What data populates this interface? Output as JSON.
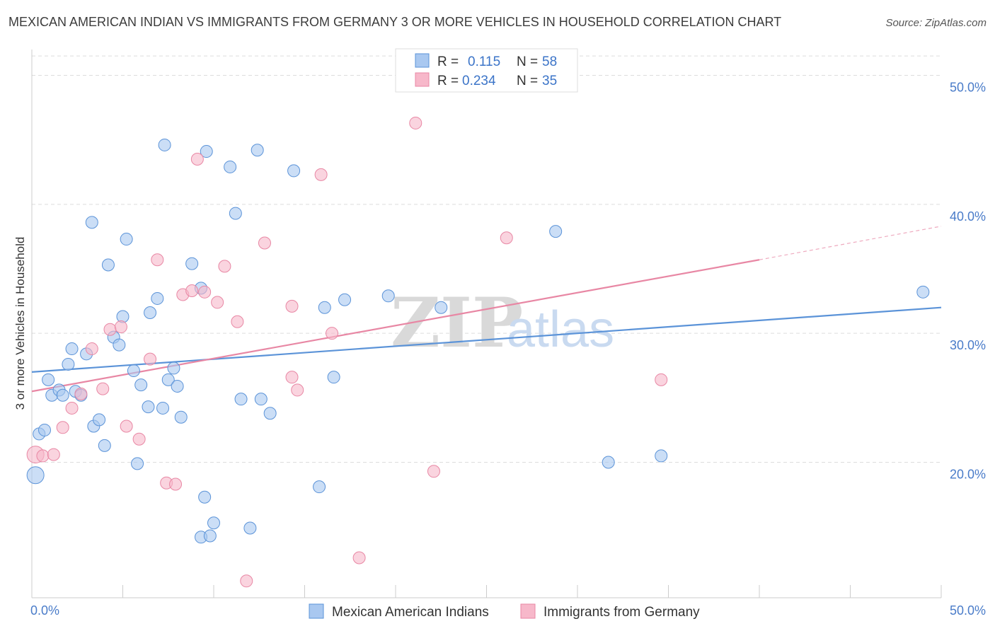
{
  "header": {
    "title": "MEXICAN AMERICAN INDIAN VS IMMIGRANTS FROM GERMANY 3 OR MORE VEHICLES IN HOUSEHOLD CORRELATION CHART",
    "source": "Source: ZipAtlas.com"
  },
  "watermark": {
    "zip": "ZIP",
    "atlas": "atlas"
  },
  "stats_legend": {
    "r_label": "R =",
    "n_label": "N =",
    "rows": [
      {
        "r": "0.115",
        "n": "58",
        "color": "#a9c8f0"
      },
      {
        "r": "0.234",
        "n": "35",
        "color": "#f7b8ca"
      }
    ]
  },
  "chart_data": {
    "type": "scatter",
    "title": "MEXICAN AMERICAN INDIAN VS IMMIGRANTS FROM GERMANY 3 OR MORE VEHICLES IN HOUSEHOLD CORRELATION CHART",
    "xlabel": "",
    "ylabel": "3 or more Vehicles in Household",
    "xlim": [
      0,
      50
    ],
    "ylim": [
      9.5,
      52
    ],
    "x_tick_labels": [
      "0.0%",
      "50.0%"
    ],
    "y_ticks": [
      {
        "value": 20,
        "label": "20.0%"
      },
      {
        "value": 30,
        "label": "30.0%"
      },
      {
        "value": 40,
        "label": "40.0%"
      },
      {
        "value": 50,
        "label": "50.0%"
      }
    ],
    "grid": "horizontal dashed",
    "legend_position": "bottom",
    "series": [
      {
        "name": "Mexican American Indians",
        "color": "#5b93d8",
        "fill": "#a9c8f0",
        "trend": {
          "x": [
            0,
            50
          ],
          "y": [
            27.0,
            32.0
          ]
        },
        "points": [
          [
            0.2,
            19.0
          ],
          [
            0.4,
            22.2
          ],
          [
            0.7,
            22.5
          ],
          [
            0.9,
            26.4
          ],
          [
            1.1,
            25.2
          ],
          [
            1.5,
            25.6
          ],
          [
            1.7,
            25.2
          ],
          [
            2.0,
            27.6
          ],
          [
            2.2,
            28.8
          ],
          [
            2.4,
            25.5
          ],
          [
            2.7,
            25.2
          ],
          [
            3.0,
            28.4
          ],
          [
            3.3,
            38.6
          ],
          [
            3.4,
            22.8
          ],
          [
            3.7,
            23.3
          ],
          [
            4.0,
            21.3
          ],
          [
            4.2,
            35.3
          ],
          [
            4.5,
            29.7
          ],
          [
            4.8,
            29.1
          ],
          [
            5.0,
            31.3
          ],
          [
            5.2,
            37.3
          ],
          [
            5.6,
            27.1
          ],
          [
            5.8,
            19.9
          ],
          [
            6.0,
            26.0
          ],
          [
            6.4,
            24.3
          ],
          [
            6.5,
            31.6
          ],
          [
            6.9,
            32.7
          ],
          [
            7.2,
            24.2
          ],
          [
            7.3,
            44.6
          ],
          [
            7.5,
            26.4
          ],
          [
            7.8,
            27.3
          ],
          [
            8.0,
            25.9
          ],
          [
            8.2,
            23.5
          ],
          [
            8.8,
            35.4
          ],
          [
            9.3,
            33.5
          ],
          [
            9.5,
            17.3
          ],
          [
            9.3,
            14.2
          ],
          [
            9.6,
            44.1
          ],
          [
            9.8,
            14.3
          ],
          [
            10.0,
            15.3
          ],
          [
            10.9,
            42.9
          ],
          [
            11.2,
            39.3
          ],
          [
            11.5,
            24.9
          ],
          [
            12.0,
            14.9
          ],
          [
            12.4,
            44.2
          ],
          [
            12.6,
            24.9
          ],
          [
            13.1,
            23.8
          ],
          [
            14.4,
            42.6
          ],
          [
            15.8,
            18.1
          ],
          [
            16.1,
            32.0
          ],
          [
            16.6,
            26.6
          ],
          [
            17.2,
            32.6
          ],
          [
            19.6,
            32.9
          ],
          [
            22.5,
            32.0
          ],
          [
            28.8,
            37.9
          ],
          [
            31.7,
            20.0
          ],
          [
            34.6,
            20.5
          ],
          [
            49.0,
            33.2
          ]
        ]
      },
      {
        "name": "Immigrants from Germany",
        "color": "#e887a4",
        "fill": "#f7b8ca",
        "trend": {
          "x": [
            0,
            40
          ],
          "y": [
            25.5,
            35.7
          ]
        },
        "trend_dashed": {
          "x": [
            40,
            50
          ],
          "y": [
            35.7,
            38.3
          ]
        },
        "points": [
          [
            0.2,
            20.6
          ],
          [
            0.6,
            20.5
          ],
          [
            1.2,
            20.6
          ],
          [
            1.7,
            22.7
          ],
          [
            2.2,
            24.2
          ],
          [
            2.7,
            25.3
          ],
          [
            3.3,
            28.8
          ],
          [
            3.9,
            25.7
          ],
          [
            4.3,
            30.3
          ],
          [
            4.9,
            30.5
          ],
          [
            5.2,
            22.8
          ],
          [
            5.9,
            21.8
          ],
          [
            6.5,
            28.0
          ],
          [
            6.9,
            35.7
          ],
          [
            7.4,
            18.4
          ],
          [
            7.9,
            18.3
          ],
          [
            8.3,
            33.0
          ],
          [
            8.8,
            33.3
          ],
          [
            9.1,
            43.5
          ],
          [
            9.5,
            33.2
          ],
          [
            10.2,
            32.4
          ],
          [
            10.6,
            35.2
          ],
          [
            11.3,
            30.9
          ],
          [
            11.8,
            10.8
          ],
          [
            12.8,
            37.0
          ],
          [
            14.3,
            26.6
          ],
          [
            14.3,
            32.1
          ],
          [
            14.6,
            25.6
          ],
          [
            15.9,
            42.3
          ],
          [
            16.5,
            30.0
          ],
          [
            18.0,
            12.6
          ],
          [
            21.1,
            46.3
          ],
          [
            22.1,
            19.3
          ],
          [
            26.1,
            37.4
          ],
          [
            34.6,
            26.4
          ]
        ]
      }
    ]
  },
  "bottom_legend": {
    "items": [
      {
        "label": "Mexican American Indians",
        "color": "#a9c8f0",
        "stroke": "#5b93d8"
      },
      {
        "label": "Immigrants from Germany",
        "color": "#f7b8ca",
        "stroke": "#e887a4"
      }
    ]
  }
}
